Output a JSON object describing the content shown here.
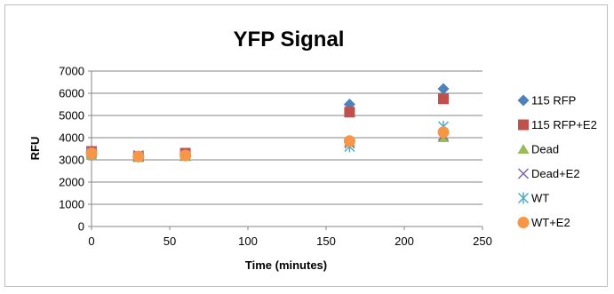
{
  "chart_data": {
    "type": "scatter",
    "title": "YFP Signal",
    "xlabel": "Time (minutes)",
    "ylabel": "RFU",
    "xlim": [
      0,
      250
    ],
    "ylim": [
      0,
      7000
    ],
    "x_ticks": [
      0,
      50,
      100,
      150,
      200,
      250
    ],
    "y_ticks": [
      0,
      1000,
      2000,
      3000,
      4000,
      5000,
      6000,
      7000
    ],
    "grid": "horizontal",
    "legend_position": "right",
    "series": [
      {
        "name": "115 RFP",
        "marker": "diamond",
        "color": "#4f81bd",
        "points": [
          [
            0,
            3400
          ],
          [
            30,
            3150
          ],
          [
            60,
            3250
          ],
          [
            165,
            5500
          ],
          [
            225,
            6200
          ]
        ]
      },
      {
        "name": "115 RFP+E2",
        "marker": "square",
        "color": "#c0504d",
        "points": [
          [
            0,
            3380
          ],
          [
            30,
            3150
          ],
          [
            60,
            3300
          ],
          [
            165,
            5150
          ],
          [
            225,
            5750
          ]
        ]
      },
      {
        "name": "Dead",
        "marker": "triangle",
        "color": "#9bbb59",
        "points": [
          [
            0,
            3200
          ],
          [
            30,
            3100
          ],
          [
            60,
            3150
          ],
          [
            165,
            3800
          ],
          [
            225,
            4000
          ]
        ]
      },
      {
        "name": "Dead+E2",
        "marker": "x",
        "color": "#8064a2",
        "points": [
          [
            0,
            3350
          ],
          [
            30,
            3200
          ],
          [
            60,
            3200
          ],
          [
            165,
            3750
          ],
          [
            225,
            4100
          ]
        ]
      },
      {
        "name": "WT",
        "marker": "star",
        "color": "#4bacc6",
        "points": [
          [
            0,
            3300
          ],
          [
            30,
            3150
          ],
          [
            60,
            3200
          ],
          [
            165,
            3600
          ],
          [
            225,
            4500
          ]
        ]
      },
      {
        "name": "WT+E2",
        "marker": "circle",
        "color": "#f79646",
        "points": [
          [
            0,
            3300
          ],
          [
            30,
            3150
          ],
          [
            60,
            3200
          ],
          [
            165,
            3850
          ],
          [
            225,
            4250
          ]
        ]
      }
    ]
  }
}
